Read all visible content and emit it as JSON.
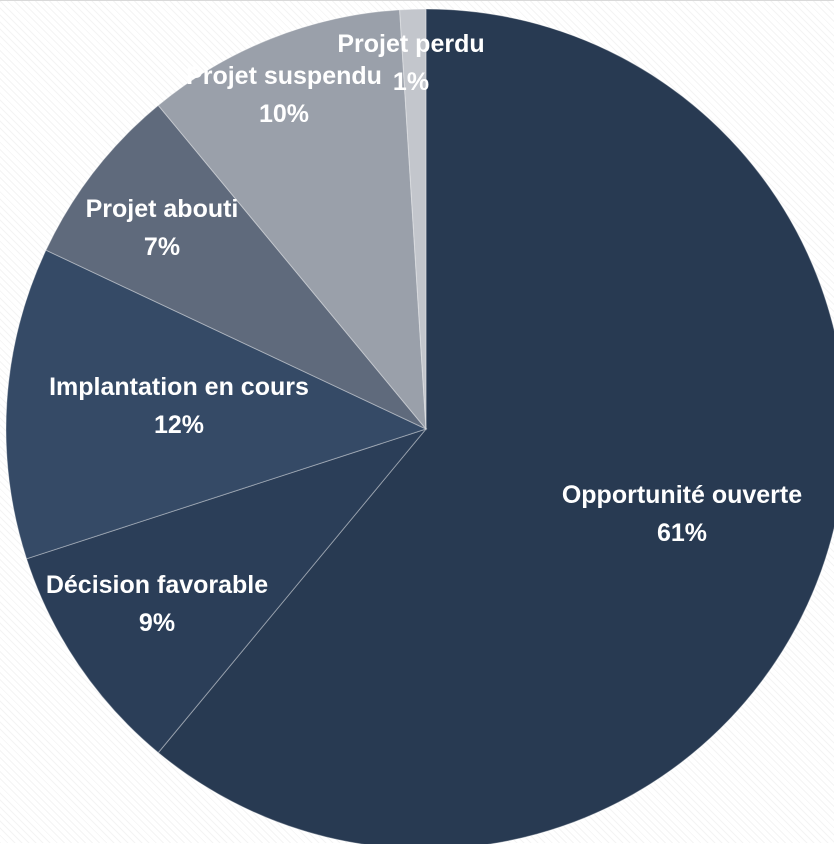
{
  "chart_data": {
    "type": "pie",
    "title": "",
    "start_angle_deg": 0,
    "direction": "clockwise",
    "slices": [
      {
        "name": "Opportunité ouverte",
        "percent_label": "61%",
        "value": 61,
        "color": "#283a52"
      },
      {
        "name": "Décision favorable",
        "percent_label": "9%",
        "value": 9,
        "color": "#2b3e58"
      },
      {
        "name": "Implantation en cours",
        "percent_label": "12%",
        "value": 12,
        "color": "#354a66"
      },
      {
        "name": "Projet abouti",
        "percent_label": "7%",
        "value": 7,
        "color": "#5f6a7c"
      },
      {
        "name": "Projet suspendu",
        "percent_label": "10%",
        "value": 10,
        "color": "#9aa0aa"
      },
      {
        "name": "Projet perdu",
        "percent_label": "1%",
        "value": 1,
        "color": "#c3c6cc"
      }
    ],
    "legend": "none",
    "data_labels": "inside, category name and percentage"
  }
}
